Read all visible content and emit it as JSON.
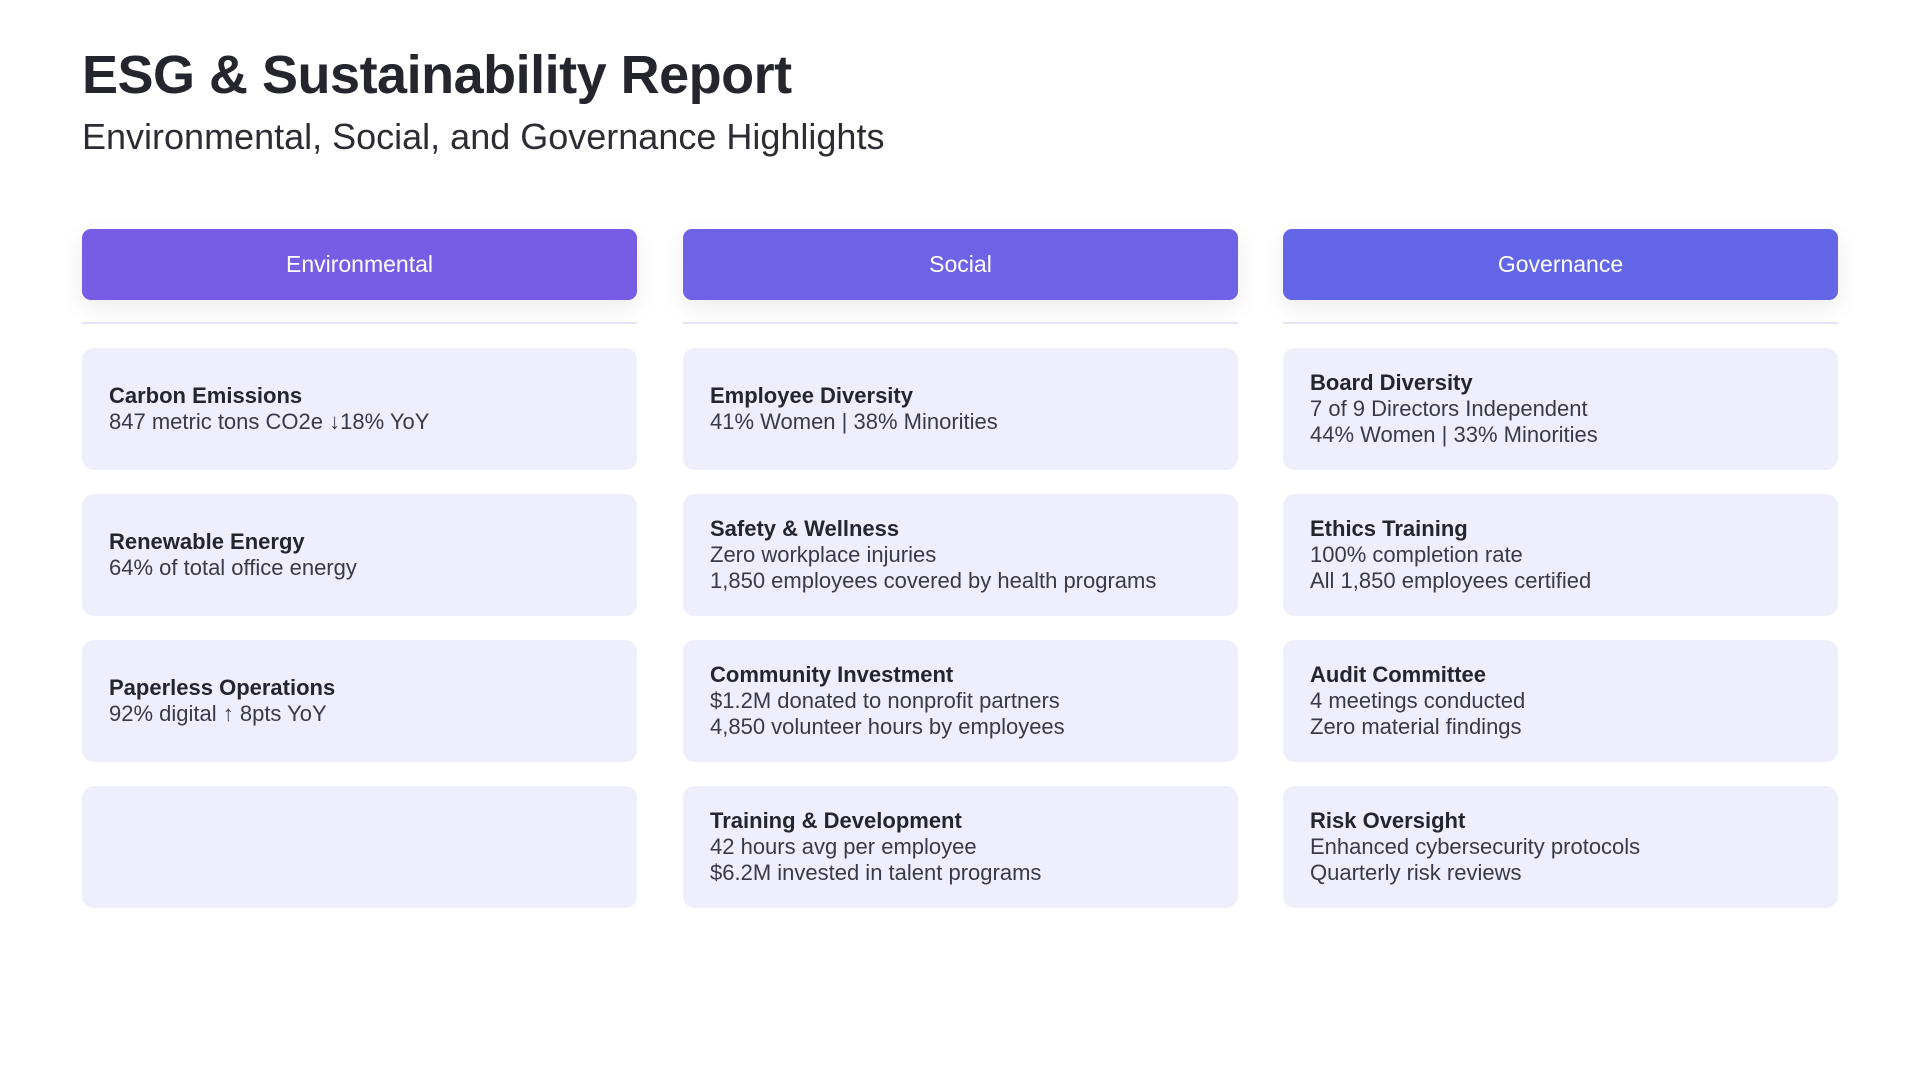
{
  "header": {
    "title": "ESG & Sustainability Report",
    "subtitle": "Environmental, Social, and Governance Highlights"
  },
  "columns": [
    {
      "label": "Environmental",
      "color": "#775ce6",
      "cards": [
        {
          "title": "Carbon Emissions",
          "lines": [
            "847 metric tons CO2e ↓18% YoY"
          ]
        },
        {
          "title": "Renewable Energy",
          "lines": [
            "64% of total office energy"
          ]
        },
        {
          "title": "Paperless Operations",
          "lines": [
            "92% digital ↑  8pts YoY"
          ]
        },
        {
          "title": "",
          "lines": []
        }
      ]
    },
    {
      "label": "Social",
      "color": "#6e62e6",
      "cards": [
        {
          "title": "Employee Diversity",
          "lines": [
            "41% Women | 38% Minorities"
          ]
        },
        {
          "title": "Safety & Wellness",
          "lines": [
            "Zero workplace injuries",
            "1,850 employees covered by health programs"
          ]
        },
        {
          "title": "Community Investment",
          "lines": [
            "$1.2M donated to nonprofit partners",
            "4,850 volunteer hours by employees"
          ]
        },
        {
          "title": "Training & Development",
          "lines": [
            "42 hours avg per employee",
            "$6.2M invested in talent programs"
          ]
        }
      ]
    },
    {
      "label": "Governance",
      "color": "#6366e6",
      "cards": [
        {
          "title": "Board Diversity",
          "lines": [
            "7 of 9 Directors Independent",
            "44% Women | 33% Minorities"
          ]
        },
        {
          "title": "Ethics Training",
          "lines": [
            "100% completion rate",
            "All 1,850 employees certified"
          ]
        },
        {
          "title": "Audit Committee",
          "lines": [
            "4 meetings conducted",
            "Zero material findings"
          ]
        },
        {
          "title": "Risk Oversight",
          "lines": [
            "Enhanced cybersecurity protocols",
            "Quarterly risk reviews"
          ]
        }
      ]
    }
  ]
}
